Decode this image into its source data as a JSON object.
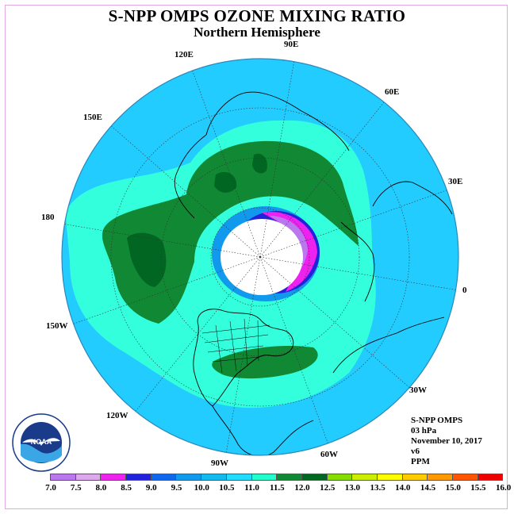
{
  "title": "S-NPP OMPS OZONE MIXING RATIO",
  "subtitle": "Northern Hemisphere",
  "logo_text": "NOAA",
  "logo_ring_text": "NATIONAL OCEANIC AND ATMOSPHERIC ADMINISTRATION · U.S. DEPARTMENT OF COMMERCE",
  "info": {
    "instrument": "S-NPP OMPS",
    "level": "03 hPa",
    "date": "November 10, 2017",
    "version": "v6",
    "units": "PPM"
  },
  "longitude_labels": [
    "90E",
    "120E",
    "60E",
    "150E",
    "30E",
    "180",
    "0",
    "150W",
    "30W",
    "120W",
    "60W",
    "90W"
  ],
  "colorbar": {
    "ticks": [
      "7.0",
      "7.5",
      "8.0",
      "8.5",
      "9.0",
      "9.5",
      "10.0",
      "10.5",
      "11.0",
      "11.5",
      "12.0",
      "12.5",
      "13.0",
      "13.5",
      "14.0",
      "14.5",
      "15.0",
      "15.5",
      "16.0"
    ],
    "colors": [
      "#bb77ee",
      "#dda8ee",
      "#ee22ee",
      "#2222dd",
      "#1166ee",
      "#1199ee",
      "#11bbee",
      "#22ddff",
      "#22ffcc",
      "#118833",
      "#006622",
      "#88dd00",
      "#ccee00",
      "#ffff00",
      "#ffcc00",
      "#ff9900",
      "#ff5500",
      "#ee0000",
      "#885533"
    ]
  },
  "palette": {
    "ocean_bg": "#22ccff",
    "cyan": "#33ffdd",
    "green": "#118833",
    "dark_green": "#006622",
    "mid_blue": "#1199ee",
    "blue": "#2222dd",
    "magenta": "#ee22ee",
    "violet": "#bb77ee"
  }
}
